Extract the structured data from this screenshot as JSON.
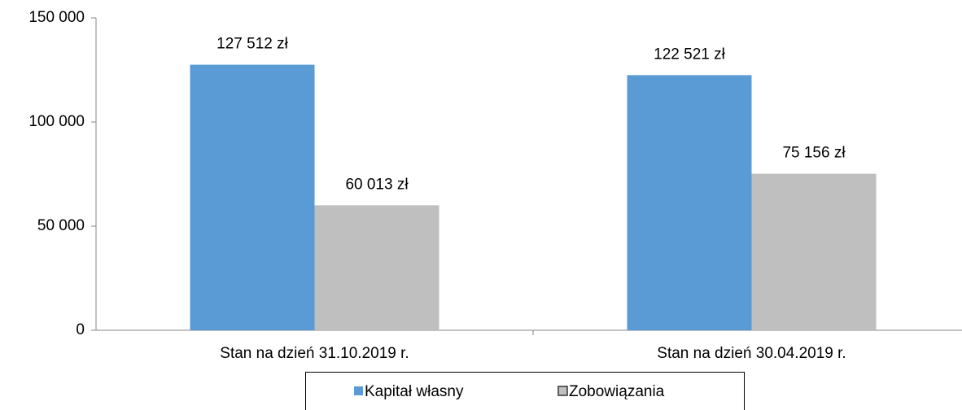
{
  "chart_data": {
    "type": "bar",
    "categories": [
      "Stan na dzień 31.10.2019 r.",
      "Stan na dzień 30.04.2019 r."
    ],
    "series": [
      {
        "name": "Kapitał własny",
        "color": "#5b9bd5",
        "values": [
          127512,
          122521
        ],
        "value_labels": [
          "127 512 zł",
          "122 521 zł"
        ]
      },
      {
        "name": "Zobowiązania",
        "color": "#bfbfbf",
        "values": [
          60013,
          75156
        ],
        "value_labels": [
          "60 013 zł",
          "75 156 zł"
        ]
      }
    ],
    "ylim": [
      0,
      150000
    ],
    "yticks": [
      0,
      {
        "value": 50000,
        "label": "50 000"
      },
      {
        "value": 100000,
        "label": "100 000"
      },
      {
        "value": 150000,
        "label": "150 000"
      }
    ],
    "grid": false,
    "legend": "bottom"
  }
}
